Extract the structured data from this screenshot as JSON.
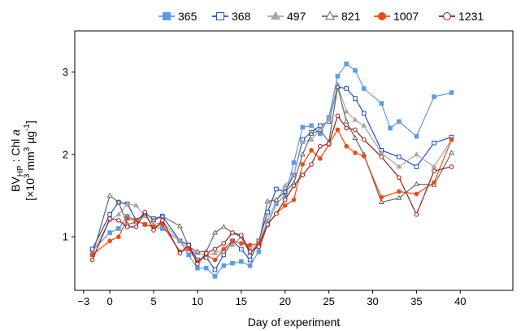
{
  "chart_data": {
    "type": "line",
    "title": "",
    "xlabel": "Day of experiment",
    "ylabel": {
      "line1_main": "BV",
      "line1_sub": "HP",
      "line1_rest": " : Chl ",
      "line1_italic": "a",
      "line2_open": "[×10",
      "line2_sup1": "3",
      "line2_mid": " mm",
      "line2_sup2": "3",
      "line2_unit": " µg",
      "line2_sup3": "-1",
      "line2_close": "]"
    },
    "xlim": [
      -4,
      46
    ],
    "ylim": [
      0.35,
      3.5
    ],
    "x_ticks": [
      -3,
      0,
      5,
      10,
      15,
      20,
      25,
      30,
      35,
      40
    ],
    "y_ticks": [
      1,
      2,
      3
    ],
    "legend_position": "top",
    "series": [
      {
        "name": "365",
        "color": "#5b9ce8",
        "marker": "square-filled",
        "x": [
          -2,
          0,
          1,
          2,
          3,
          4,
          5,
          6,
          8,
          9,
          10,
          11,
          12,
          13,
          14,
          15,
          16,
          17,
          18,
          19,
          20,
          21,
          22,
          23,
          24,
          25,
          26,
          27,
          28,
          29,
          31,
          32,
          33,
          35,
          37,
          39
        ],
        "y": [
          0.83,
          1.05,
          1.1,
          1.25,
          1.2,
          1.15,
          1.12,
          1.1,
          0.95,
          0.78,
          0.62,
          0.62,
          0.52,
          0.65,
          0.68,
          0.7,
          0.65,
          0.82,
          1.15,
          1.4,
          1.5,
          1.9,
          2.33,
          2.35,
          2.25,
          2.45,
          2.95,
          3.1,
          3.02,
          2.8,
          2.62,
          2.32,
          2.4,
          2.22,
          2.7,
          2.75
        ]
      },
      {
        "name": "368",
        "color": "#1a4fd6",
        "marker": "square-open",
        "x": [
          -2,
          0,
          1,
          2,
          3,
          4,
          5,
          6,
          8,
          9,
          10,
          11,
          12,
          13,
          14,
          15,
          16,
          17,
          18,
          19,
          20,
          21,
          22,
          23,
          24,
          25,
          26,
          27,
          28,
          29,
          31,
          33,
          35,
          37,
          39
        ],
        "y": [
          0.85,
          1.27,
          1.42,
          1.4,
          1.2,
          1.28,
          1.22,
          1.25,
          0.95,
          0.9,
          0.72,
          0.75,
          0.6,
          0.78,
          0.95,
          0.85,
          0.72,
          0.95,
          1.3,
          1.58,
          1.55,
          1.75,
          2.18,
          2.27,
          2.35,
          2.4,
          2.82,
          2.8,
          2.68,
          2.5,
          2.05,
          1.97,
          1.85,
          2.14,
          2.21
        ]
      },
      {
        "name": "497",
        "color": "#a6a6a6",
        "marker": "triangle-filled",
        "x": [
          -2,
          0,
          1,
          2,
          3,
          4,
          5,
          6,
          8,
          9,
          10,
          11,
          12,
          13,
          14,
          15,
          16,
          17,
          18,
          19,
          20,
          21,
          22,
          23,
          24,
          25,
          26,
          27,
          28,
          29,
          31,
          33,
          35,
          37,
          39
        ],
        "y": [
          0.8,
          1.2,
          1.27,
          1.4,
          1.38,
          1.25,
          1.15,
          1.18,
          0.95,
          0.85,
          0.8,
          0.78,
          0.8,
          0.85,
          0.9,
          1.0,
          0.85,
          0.92,
          1.2,
          1.43,
          1.62,
          1.75,
          2.15,
          2.18,
          2.3,
          2.42,
          2.85,
          2.52,
          2.42,
          2.35,
          2.02,
          1.85,
          2.0,
          1.85,
          2.18
        ]
      },
      {
        "name": "821",
        "color": "#666666",
        "marker": "triangle-open",
        "x": [
          -2,
          0,
          1,
          2,
          3,
          4,
          5,
          6,
          8,
          9,
          10,
          11,
          12,
          13,
          14,
          15,
          16,
          17,
          18,
          19,
          20,
          21,
          22,
          23,
          24,
          25,
          26,
          27,
          28,
          29,
          31,
          33,
          35,
          37,
          39
        ],
        "y": [
          0.78,
          1.5,
          1.42,
          1.15,
          1.18,
          1.3,
          1.2,
          1.25,
          1.13,
          0.88,
          0.82,
          0.82,
          1.05,
          1.12,
          1.05,
          1.0,
          0.8,
          0.92,
          1.43,
          1.45,
          1.55,
          1.65,
          2.0,
          2.25,
          2.3,
          2.15,
          2.82,
          2.4,
          2.2,
          2.0,
          1.42,
          1.47,
          1.64,
          1.63,
          2.02
        ]
      },
      {
        "name": "1007",
        "color": "#f04a10",
        "marker": "circle-filled",
        "x": [
          -2,
          0,
          1,
          2,
          3,
          4,
          5,
          6,
          8,
          9,
          10,
          11,
          12,
          13,
          14,
          15,
          16,
          17,
          18,
          19,
          20,
          21,
          22,
          23,
          24,
          25,
          26,
          27,
          28,
          29,
          31,
          33,
          35,
          37,
          39
        ],
        "y": [
          0.78,
          0.95,
          1.0,
          1.22,
          1.2,
          1.15,
          1.12,
          1.15,
          0.82,
          0.85,
          0.7,
          0.78,
          0.72,
          0.85,
          0.95,
          0.92,
          0.9,
          0.92,
          1.15,
          1.28,
          1.38,
          1.45,
          1.88,
          2.05,
          1.95,
          2.12,
          2.3,
          2.1,
          2.02,
          1.98,
          1.48,
          1.55,
          1.52,
          1.66,
          2.18
        ]
      },
      {
        "name": "1231",
        "color": "#a01818",
        "marker": "circle-open",
        "x": [
          -2,
          0,
          1,
          2,
          3,
          4,
          5,
          6,
          8,
          9,
          10,
          11,
          12,
          13,
          14,
          15,
          16,
          17,
          18,
          19,
          20,
          21,
          22,
          23,
          24,
          25,
          26,
          27,
          28,
          29,
          31,
          33,
          35,
          37,
          39
        ],
        "y": [
          0.72,
          1.22,
          1.2,
          1.12,
          1.12,
          1.3,
          1.08,
          1.2,
          0.8,
          0.9,
          0.67,
          0.8,
          0.85,
          0.92,
          1.05,
          1.02,
          0.82,
          0.88,
          1.15,
          1.28,
          1.45,
          1.62,
          1.75,
          1.88,
          2.1,
          2.13,
          2.47,
          2.32,
          2.3,
          2.18,
          1.97,
          1.72,
          1.27,
          1.8,
          1.85
        ]
      }
    ]
  }
}
